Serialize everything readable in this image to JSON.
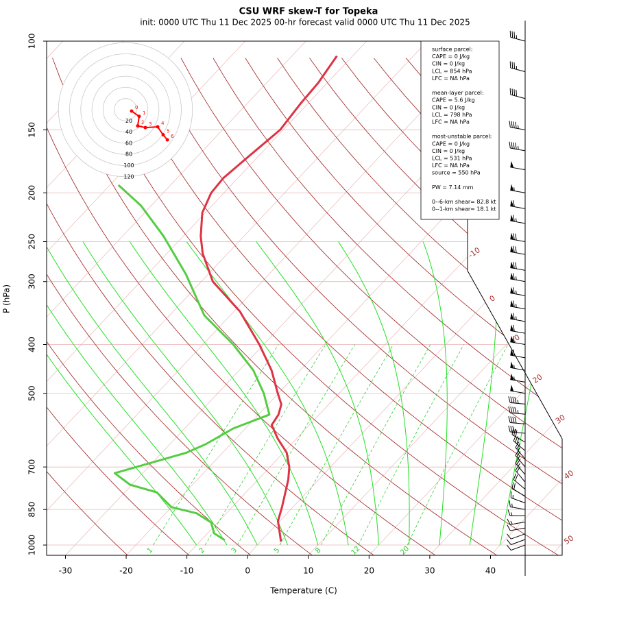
{
  "chart_data": {
    "type": "skewt",
    "title": "CSU WRF skew-T for Topeka",
    "subtitle": "init: 0000 UTC Thu 11 Dec 2025    00-hr forecast valid 0000 UTC Thu 11 Dec 2025",
    "x_label": "Temperature (C)",
    "y_label": "P (hPa)",
    "xlim": [
      -33.1,
      51.8
    ],
    "ylim": [
      1048,
      100
    ],
    "log_y": true,
    "xticks": [
      -30,
      -20,
      -10,
      0,
      10,
      20,
      30,
      40
    ],
    "yticks": [
      100,
      150,
      200,
      250,
      300,
      400,
      500,
      700,
      850,
      1000
    ],
    "isotherm_labels": [
      -10,
      0,
      10,
      20,
      30,
      40,
      50
    ],
    "mixing_ratio_labels": [
      1,
      2,
      3,
      5,
      8,
      12,
      20
    ],
    "series": [
      {
        "color": "#dd3344",
        "pressure": [
          985,
          896,
          841,
          742,
          700,
          655,
          615,
          578,
          551,
          526,
          500,
          450,
          400,
          344,
          300,
          264,
          244,
          219,
          200,
          187,
          170,
          150,
          133,
          121,
          107
        ],
        "values": [
          3.4,
          -0.3,
          -1.8,
          -5.0,
          -6.8,
          -9.5,
          -13.1,
          -16.2,
          -16.7,
          -17.8,
          -20.1,
          -24.7,
          -30.7,
          -39.0,
          -48.1,
          -54.1,
          -57.1,
          -60.5,
          -62.1,
          -62.4,
          -61.6,
          -60.5,
          -61.2,
          -61.5,
          -62.6
        ]
      },
      {
        "color": "#55cc44",
        "pressure": [
          978,
          948,
          902,
          865,
          841,
          786,
          759,
          720,
          656,
          631,
          587,
          551,
          500,
          450,
          400,
          350,
          290,
          244,
          212,
          193
        ],
        "values": [
          -6.1,
          -8.9,
          -11.1,
          -14.9,
          -20.0,
          -24.7,
          -30.3,
          -34.6,
          -26.0,
          -24.1,
          -22.0,
          -18.2,
          -22.4,
          -27.7,
          -35.0,
          -44.3,
          -53.7,
          -63.2,
          -71.7,
          -78.6
        ]
      }
    ],
    "hodograph": {
      "rings": [
        20,
        40,
        60,
        80,
        100,
        120
      ],
      "labels": [
        0,
        1,
        2,
        3,
        4,
        5,
        6
      ],
      "u": [
        11,
        24.5,
        22,
        35.6,
        57.7,
        67.5,
        75
      ],
      "v": [
        -2.5,
        -12,
        -29,
        -32,
        -30.7,
        -45,
        -54
      ],
      "color": "#ff0000"
    },
    "winds": {
      "pressure": [
        100,
        115,
        130,
        150,
        165,
        180,
        200,
        215,
        230,
        250,
        265,
        285,
        300,
        320,
        340,
        360,
        380,
        400,
        425,
        450,
        475,
        500,
        525,
        550,
        575,
        600,
        625,
        650,
        675,
        700,
        725,
        750,
        775,
        800,
        825,
        850,
        875,
        900,
        925,
        950,
        975,
        1000
      ],
      "speed": [
        35,
        35,
        40,
        45,
        45,
        50,
        55,
        60,
        65,
        70,
        70,
        70,
        65,
        65,
        65,
        65,
        60,
        60,
        60,
        55,
        55,
        50,
        45,
        45,
        40,
        35,
        30,
        30,
        25,
        25,
        25,
        20,
        20,
        20,
        15,
        15,
        15,
        15,
        10,
        10,
        10,
        10
      ],
      "direction": [
        285,
        285,
        285,
        280,
        280,
        280,
        280,
        280,
        280,
        280,
        280,
        280,
        280,
        280,
        280,
        280,
        280,
        280,
        280,
        280,
        280,
        280,
        275,
        275,
        275,
        275,
        300,
        310,
        320,
        320,
        320,
        320,
        310,
        300,
        290,
        280,
        270,
        260,
        260,
        250,
        250,
        250
      ]
    },
    "info_box": [
      [
        "surface parcel:",
        "CAPE = 0 J/kg",
        "CIN = 0 J/kg",
        "LCL = 854 hPa",
        "LFC = NA hPa"
      ],
      [
        "mean-layer parcel:",
        "CAPE = 5.6 J/kg",
        "CIN = 0 J/kg",
        "LCL = 798 hPa",
        "LFC = NA hPa"
      ],
      [
        "most-unstable parcel:",
        "CAPE = 0 J/kg",
        "CIN = 0 J/kg",
        "LCL = 531 hPa",
        "LFC = NA hPa",
        "source = 550 hPa"
      ],
      [
        "PW =  7.14 mm"
      ],
      [
        "0--6-km shear= 82.8 kt",
        "0--1-km shear= 18.1 kt"
      ]
    ]
  }
}
